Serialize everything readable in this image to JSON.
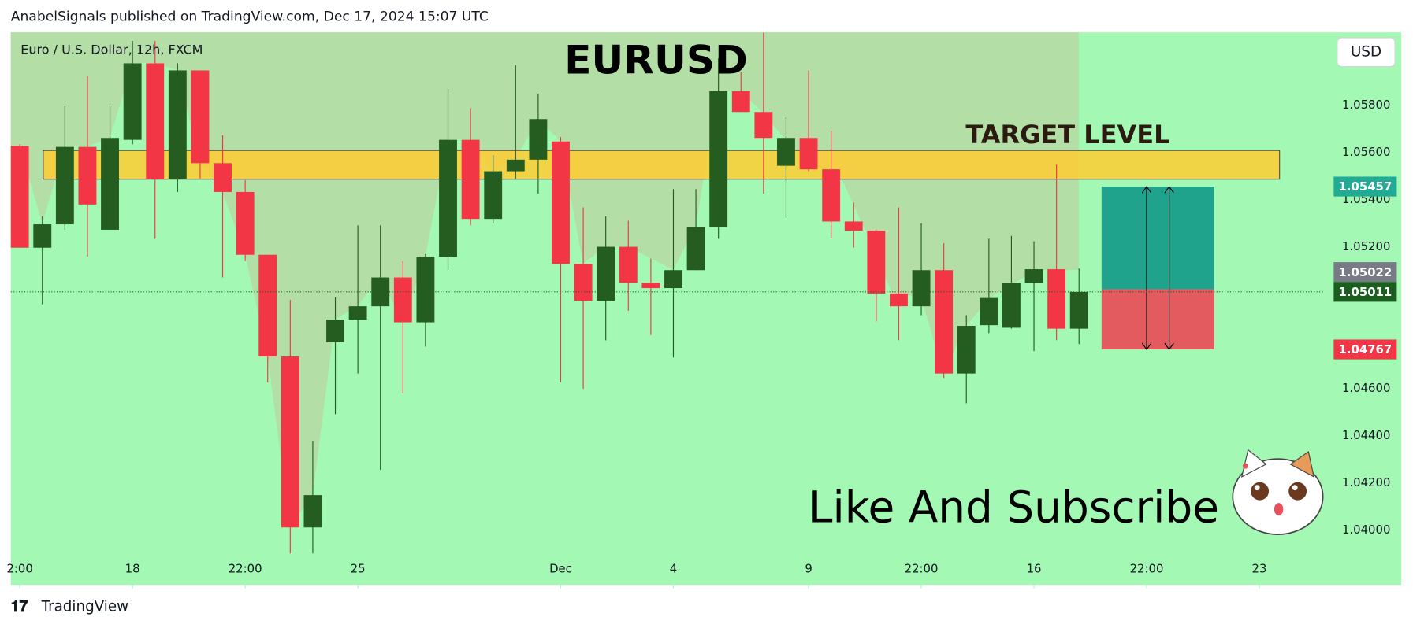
{
  "header": "AnabelSignals published on TradingView.com, Dec 17, 2024 15:07 UTC",
  "footer": "TradingView",
  "chart_data": {
    "type": "candlestick",
    "title": "EURUSD",
    "subtitle": "Euro / U.S. Dollar, 12h, FXCM",
    "currency": "USD",
    "annotation": "Like And Subscribe",
    "up_color": "#255c1f",
    "down_color": "#f23645",
    "x": [
      0,
      1,
      2,
      3,
      4,
      5,
      6,
      7,
      8,
      9,
      10,
      11,
      12,
      13,
      14,
      15,
      16,
      17,
      18,
      19,
      20,
      21,
      22,
      23,
      24,
      25,
      26,
      27,
      28,
      29,
      30,
      31,
      32,
      33,
      34,
      35,
      36,
      37,
      38,
      39,
      40,
      41,
      42,
      43,
      44,
      45,
      46,
      47
    ],
    "open": [
      1.05629,
      1.05198,
      1.05297,
      1.05625,
      1.05274,
      1.05655,
      1.05979,
      1.05488,
      1.05949,
      1.05556,
      1.05434,
      1.05168,
      1.04737,
      1.04013,
      1.04798,
      1.04893,
      1.0495,
      1.05072,
      1.04882,
      1.0516,
      1.05655,
      1.0532,
      1.05522,
      1.05571,
      1.05648,
      1.05129,
      1.04973,
      1.05202,
      1.05049,
      1.05027,
      1.05103,
      1.05286,
      1.05861,
      1.05773,
      1.05545,
      1.05663,
      1.0553,
      1.05309,
      1.0527,
      1.05004,
      1.0495,
      1.05103,
      1.04665,
      1.0487,
      1.04859,
      1.05049,
      1.05107,
      1.04855
    ],
    "high": [
      1.05636,
      1.05331,
      1.05796,
      1.05926,
      1.05796,
      1.06074,
      1.06074,
      1.05979,
      1.05949,
      1.05674,
      1.05484,
      1.05168,
      1.04977,
      1.04379,
      1.04988,
      1.05293,
      1.05293,
      1.05141,
      1.05171,
      1.05872,
      1.05789,
      1.0559,
      1.05971,
      1.0585,
      1.05667,
      1.05369,
      1.05331,
      1.05312,
      1.05152,
      1.05446,
      1.05446,
      1.06,
      1.05941,
      1.06109,
      1.0575,
      1.05949,
      1.05693,
      1.05389,
      1.05274,
      1.05369,
      1.05301,
      1.05217,
      1.04912,
      1.05236,
      1.05248,
      1.05225,
      1.0555,
      1.0511
    ],
    "low": [
      1.05198,
      1.04958,
      1.05274,
      1.0516,
      1.05274,
      1.05636,
      1.05236,
      1.05434,
      1.05491,
      1.05072,
      1.05141,
      1.04627,
      1.03903,
      1.03903,
      1.04493,
      1.04665,
      1.04257,
      1.04581,
      1.04779,
      1.05103,
      1.05293,
      1.05301,
      1.05488,
      1.05427,
      1.04627,
      1.046,
      1.04806,
      1.04931,
      1.04828,
      1.04733,
      1.05103,
      1.05236,
      1.05773,
      1.05427,
      1.05324,
      1.05522,
      1.05236,
      1.05198,
      1.04886,
      1.04806,
      1.04912,
      1.04646,
      1.04539,
      1.04836,
      1.04855,
      1.0476,
      1.04806,
      1.0479
    ],
    "close": [
      1.05198,
      1.05297,
      1.05625,
      1.05381,
      1.05663,
      1.05979,
      1.05488,
      1.05949,
      1.05556,
      1.05434,
      1.05168,
      1.04737,
      1.04013,
      1.0415,
      1.04893,
      1.0495,
      1.05072,
      1.04882,
      1.0516,
      1.05655,
      1.0532,
      1.05522,
      1.05571,
      1.05743,
      1.05129,
      1.04973,
      1.05202,
      1.05049,
      1.05027,
      1.05103,
      1.05286,
      1.05861,
      1.05773,
      1.05663,
      1.05663,
      1.0553,
      1.05309,
      1.0527,
      1.05004,
      1.0495,
      1.05103,
      1.04665,
      1.04867,
      1.04985,
      1.05049,
      1.05107,
      1.04855,
      1.05011
    ],
    "xlim": [
      -0.4,
      57.9
    ],
    "ylim": [
      1.0377,
      1.0611
    ],
    "xticks": [
      {
        "value": 0,
        "label": "2:00"
      },
      {
        "value": 5,
        "label": "18"
      },
      {
        "value": 10,
        "label": "22:00"
      },
      {
        "value": 15,
        "label": "25"
      },
      {
        "value": 24,
        "label": "Dec"
      },
      {
        "value": 29,
        "label": "4"
      },
      {
        "value": 35,
        "label": "9"
      },
      {
        "value": 40,
        "label": "22:00"
      },
      {
        "value": 45,
        "label": "16"
      },
      {
        "value": 50,
        "label": "22:00"
      },
      {
        "value": 55,
        "label": "23"
      }
    ],
    "yticks": [
      {
        "value": 1.04,
        "label": "1.04000"
      },
      {
        "value": 1.042,
        "label": "1.04200"
      },
      {
        "value": 1.044,
        "label": "1.04400"
      },
      {
        "value": 1.046,
        "label": "1.04600"
      },
      {
        "value": 1.052,
        "label": "1.05200"
      },
      {
        "value": 1.054,
        "label": "1.05400"
      },
      {
        "value": 1.056,
        "label": "1.05600"
      },
      {
        "value": 1.058,
        "label": "1.05800"
      }
    ],
    "target_zone": {
      "label": "TARGET LEVEL",
      "top": 1.0561,
      "bottom": 1.05488,
      "color": "#ffcc33"
    },
    "position": {
      "target": 1.05457,
      "entry": 1.05022,
      "stop": 1.04767,
      "profit_color": "#1fa38c",
      "loss_color": "#e35a5f"
    },
    "price_labels": [
      {
        "value": 1.05457,
        "color": "#22ab94"
      },
      {
        "value": 1.05022,
        "color": "#787b86"
      },
      {
        "value": 1.05011,
        "color": "#1b5e20"
      },
      {
        "value": 1.04767,
        "color": "#f23645"
      }
    ]
  }
}
